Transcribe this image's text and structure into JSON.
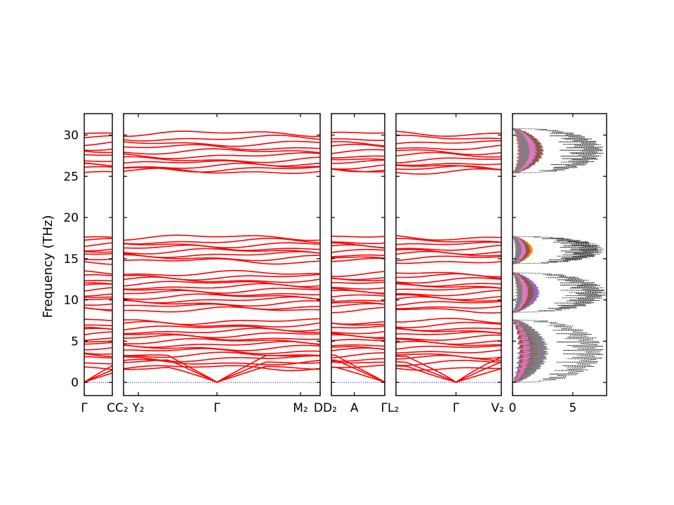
{
  "chart_data": {
    "type": "line",
    "ylabel": "Frequency (THz)",
    "ylim": [
      -1.6,
      32.6
    ],
    "y_ticks": [
      0,
      5,
      10,
      15,
      20,
      25,
      30
    ],
    "band_color": "#ff0000",
    "zero_line_color": "#0000aa",
    "segments": [
      {
        "labels": [
          "Γ",
          "C"
        ],
        "x_labels": [
          "Γ",
          "C"
        ]
      },
      {
        "labels": [
          "C₂",
          "Y₂",
          "Γ",
          "M₂",
          "D"
        ],
        "x_labels": [
          "C₂",
          "Y₂",
          "Γ",
          "M₂",
          "D"
        ]
      },
      {
        "labels": [
          "D₂",
          "A",
          "Γ"
        ],
        "x_labels": [
          "D₂",
          "A",
          "Γ"
        ]
      },
      {
        "labels": [
          "L₂",
          "Γ",
          "V₂"
        ],
        "x_labels": [
          "L₂",
          "Γ",
          "V₂"
        ]
      }
    ],
    "band_levels_thz": [
      1.8,
      2.4,
      2.9,
      3.3,
      3.8,
      4.2,
      4.6,
      5.0,
      5.4,
      5.8,
      6.2,
      6.6,
      7.0,
      7.4,
      8.8,
      9.2,
      9.6,
      10.0,
      10.4,
      10.8,
      11.2,
      11.6,
      12.0,
      12.4,
      12.8,
      13.2,
      14.7,
      15.1,
      15.5,
      15.9,
      16.3,
      16.7,
      17.1,
      17.6,
      25.6,
      25.9,
      26.2,
      26.6,
      27.0,
      27.5,
      28.0,
      28.5,
      29.0,
      29.6,
      30.2
    ],
    "acoustic_at_gamma": 0,
    "dos": {
      "xlim": [
        0,
        7.8
      ],
      "x_ticks": [
        0,
        5
      ],
      "bands": [
        {
          "range": [
            0,
            7.6
          ],
          "total_max": 7.6,
          "partial_max": 3.2
        },
        {
          "range": [
            8.5,
            13.3
          ],
          "total_max": 7.8,
          "partial_max": 2.4
        },
        {
          "range": [
            14.4,
            17.7
          ],
          "total_max": 7.6,
          "partial_max": 1.8
        },
        {
          "range": [
            25.4,
            30.8
          ],
          "total_max": 7.6,
          "partial_max": 3.0
        }
      ],
      "total_color": "#000000",
      "partial_colors": [
        "#1f77b4",
        "#ff7f0e",
        "#2ca02c",
        "#d62728",
        "#9467bd",
        "#8c564b",
        "#e377c2",
        "#7f7f7f"
      ]
    }
  }
}
